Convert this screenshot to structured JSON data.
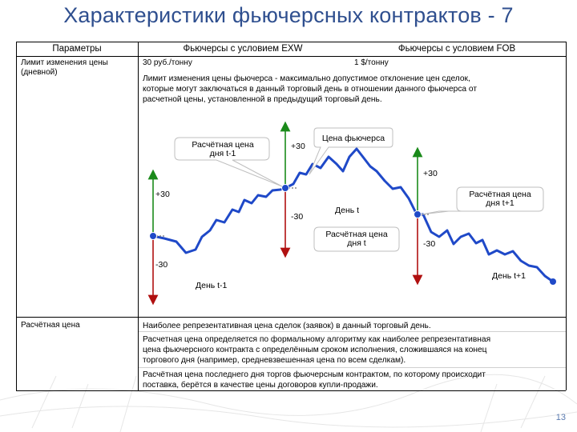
{
  "title": "Характеристики фьючерсных контрактов - 7",
  "table": {
    "headers": [
      "Параметры",
      "Фьючерсы с условием EXW",
      "Фьючерсы с условием FOB"
    ],
    "rows": [
      {
        "param": "Лимит изменения цены (дневной)",
        "exw": "30 руб./тонну",
        "fob": "1 $/тонну",
        "notes": [
          "Лимит изменения цены фьючерса - максимально допустимое отклонение цен сделок,",
          "которые могут заключаться в данный торговый день в отношении данного фьючерса от",
          "расчетной цены, установленной в предыдущий торговый день."
        ]
      },
      {
        "param": "Расчётная цена",
        "p1": "Наиболее репрезентативная цена сделок (заявок) в данный торговый день.",
        "p2": [
          "Расчетная цена определяется по формальному алгоритму как наиболее репрезентативная",
          "цена фьючерсного контракта с определённым сроком исполнения, сложившаяся на конец",
          "торгового дня (например, средневзвешенная цена по всем сделкам)."
        ],
        "p3": [
          "Расчётная цена последнего дня торгов фьючерсным контрактом, по которому происходит",
          "поставка, берётся в качестве цены договоров купли-продажи."
        ]
      }
    ]
  },
  "chart": {
    "callout_prev": [
      "Расчётная цена",
      "дня t-1"
    ],
    "callout_fut": "Цена фьючерса",
    "callout_day_t": [
      "Расчётная цена",
      "дня t"
    ],
    "callout_next": [
      "Расчётная цена",
      "дня t+1"
    ],
    "plus1": "+30",
    "minus1": "-30",
    "plus2": "+30",
    "minus2": "-30",
    "plus3": "+30",
    "minus3": "-30",
    "day_prev": "День t-1",
    "day_t": "День t",
    "day_next": "День t+1"
  },
  "page_number": "13",
  "colors": {
    "title": "#2f4f8f",
    "up": "#1a8a1a",
    "down": "#b01010",
    "line": "#1f49c8"
  }
}
